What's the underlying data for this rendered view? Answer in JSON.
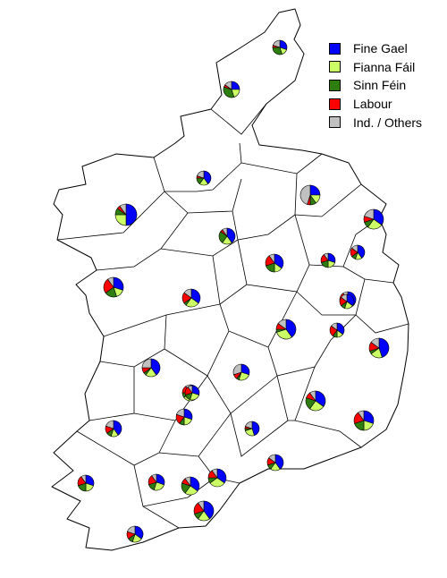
{
  "legend": [
    {
      "label": "Fine Gael",
      "color": "#0000ff"
    },
    {
      "label": "Fianna Fáil",
      "color": "#ccff66"
    },
    {
      "label": "Sinn Féin",
      "color": "#2e7d0f"
    },
    {
      "label": "Labour",
      "color": "#ff0000"
    },
    {
      "label": "Ind. / Others",
      "color": "#c0c0c0"
    }
  ],
  "constituencies": [
    {
      "shares": [
        0.3,
        0.15,
        0.3,
        0.05,
        0.2
      ]
    },
    {
      "shares": [
        0.25,
        0.2,
        0.35,
        0.05,
        0.15
      ]
    },
    {
      "shares": [
        0.4,
        0.2,
        0.15,
        0.05,
        0.2
      ]
    },
    {
      "shares": [
        0.5,
        0.25,
        0.1,
        0.05,
        0.1
      ]
    },
    {
      "shares": [
        0.25,
        0.15,
        0.1,
        0.05,
        0.45
      ]
    },
    {
      "shares": [
        0.35,
        0.25,
        0.1,
        0.1,
        0.2
      ]
    },
    {
      "shares": [
        0.4,
        0.2,
        0.25,
        0.05,
        0.1
      ]
    },
    {
      "shares": [
        0.35,
        0.15,
        0.2,
        0.2,
        0.1
      ]
    },
    {
      "shares": [
        0.3,
        0.2,
        0.2,
        0.2,
        0.1
      ]
    },
    {
      "shares": [
        0.4,
        0.15,
        0.1,
        0.2,
        0.15
      ]
    },
    {
      "shares": [
        0.3,
        0.15,
        0.2,
        0.25,
        0.1
      ]
    },
    {
      "shares": [
        0.35,
        0.25,
        0.05,
        0.2,
        0.15
      ]
    },
    {
      "shares": [
        0.35,
        0.15,
        0.15,
        0.25,
        0.1
      ]
    },
    {
      "shares": [
        0.4,
        0.3,
        0.05,
        0.1,
        0.15
      ]
    },
    {
      "shares": [
        0.35,
        0.15,
        0.1,
        0.25,
        0.15
      ]
    },
    {
      "shares": [
        0.45,
        0.2,
        0.05,
        0.15,
        0.15
      ]
    },
    {
      "shares": [
        0.4,
        0.2,
        0.05,
        0.1,
        0.25
      ]
    },
    {
      "shares": [
        0.3,
        0.25,
        0.05,
        0.1,
        0.3
      ]
    },
    {
      "shares": [
        0.35,
        0.3,
        0.1,
        0.15,
        0.1
      ]
    },
    {
      "shares": [
        0.35,
        0.25,
        0.2,
        0.1,
        0.1
      ]
    },
    {
      "shares": [
        0.3,
        0.2,
        0.1,
        0.2,
        0.2
      ]
    },
    {
      "shares": [
        0.4,
        0.15,
        0.1,
        0.15,
        0.2
      ]
    },
    {
      "shares": [
        0.45,
        0.25,
        0.05,
        0.05,
        0.2
      ]
    },
    {
      "shares": [
        0.3,
        0.2,
        0.2,
        0.2,
        0.1
      ]
    },
    {
      "shares": [
        0.4,
        0.2,
        0.1,
        0.15,
        0.15
      ]
    },
    {
      "shares": [
        0.35,
        0.3,
        0.1,
        0.15,
        0.1
      ]
    },
    {
      "shares": [
        0.3,
        0.25,
        0.15,
        0.2,
        0.1
      ]
    },
    {
      "shares": [
        0.35,
        0.25,
        0.2,
        0.1,
        0.1
      ]
    },
    {
      "shares": [
        0.3,
        0.2,
        0.2,
        0.2,
        0.1
      ]
    },
    {
      "shares": [
        0.4,
        0.2,
        0.1,
        0.2,
        0.1
      ]
    },
    {
      "shares": [
        0.35,
        0.2,
        0.1,
        0.15,
        0.2
      ]
    },
    {
      "shares": [
        0.3,
        0.25,
        0.15,
        0.2,
        0.1
      ]
    },
    {
      "shares": [
        0.35,
        0.2,
        0.1,
        0.2,
        0.15
      ]
    }
  ]
}
